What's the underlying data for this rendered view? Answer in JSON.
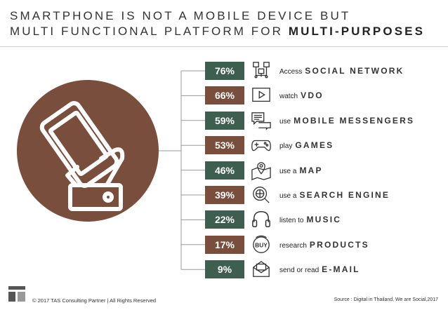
{
  "title": {
    "line1": "SMARTPHONE IS NOT A MOBILE DEVICE BUT",
    "line2_prefix": "MULTI FUNCTIONAL PLATFORM FOR ",
    "line2_bold": "MULTI-PURPOSES"
  },
  "colors": {
    "brown": "#7a4e3c",
    "green": "#3e5f50",
    "line": "#9a9a9a"
  },
  "chart_data": {
    "type": "table",
    "rows": [
      {
        "value": "76%",
        "prefix": "Access",
        "keyword": "SOCIAL NETWORK",
        "icon": "network-icon",
        "color": "#3e5f50"
      },
      {
        "value": "66%",
        "prefix": "watch",
        "keyword": "VDO",
        "icon": "video-play-icon",
        "color": "#7a4e3c"
      },
      {
        "value": "59%",
        "prefix": "use",
        "keyword": "MOBILE MESSENGERS",
        "icon": "chat-bubbles-icon",
        "color": "#3e5f50"
      },
      {
        "value": "53%",
        "prefix": "play",
        "keyword": "GAMES",
        "icon": "gamepad-icon",
        "color": "#7a4e3c"
      },
      {
        "value": "46%",
        "prefix": "use a",
        "keyword": "MAP",
        "icon": "map-pin-icon",
        "color": "#3e5f50"
      },
      {
        "value": "39%",
        "prefix": "use a",
        "keyword": "SEARCH ENGINE",
        "icon": "search-globe-icon",
        "color": "#7a4e3c"
      },
      {
        "value": "22%",
        "prefix": "listen to",
        "keyword": "MUSIC",
        "icon": "headphones-icon",
        "color": "#3e5f50"
      },
      {
        "value": "17%",
        "prefix": "research",
        "keyword": "PRODUCTS",
        "icon": "buy-bag-icon",
        "color": "#7a4e3c"
      },
      {
        "value": "9%",
        "prefix": "send or read",
        "keyword": "E-MAIL",
        "icon": "envelope-icon",
        "color": "#3e5f50"
      }
    ]
  },
  "footer": {
    "copyright": "© 2017 TAS Consulting Partner | All Rights Reserved",
    "source": "Source : Digital in Thailand, We are Social,2017"
  }
}
